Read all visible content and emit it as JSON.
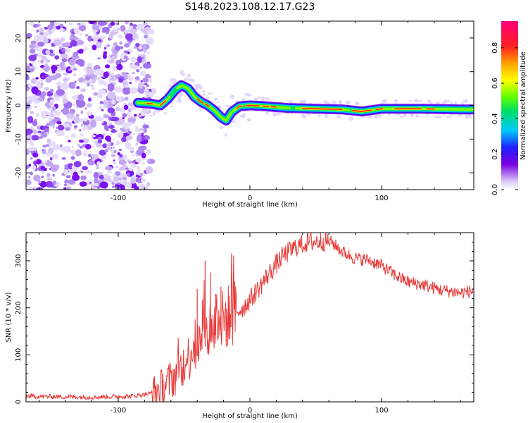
{
  "title": "S148.2023.108.12.17.G23",
  "chart_data": [
    {
      "type": "heatmap",
      "xlabel": "Height of straight line (km)",
      "ylabel": "Frequency (Hz)",
      "xlim": [
        -170,
        170
      ],
      "ylim": [
        -25,
        25
      ],
      "x_ticks": [
        -100,
        0,
        100
      ],
      "y_ticks": [
        -20,
        -10,
        0,
        10,
        20
      ],
      "colorbar": {
        "label": "Normalized spectral amplitude",
        "range": [
          0,
          0.95
        ],
        "ticks": [
          0.0,
          0.2,
          0.4,
          0.6,
          0.8
        ]
      },
      "noise_region_x": [
        -170,
        -80
      ],
      "ridge": [
        {
          "x": -85,
          "f": 0.8
        },
        {
          "x": -75,
          "f": 0.5
        },
        {
          "x": -68,
          "f": 0.0
        },
        {
          "x": -62,
          "f": 2.0
        },
        {
          "x": -57,
          "f": 4.5
        },
        {
          "x": -52,
          "f": 6.0
        },
        {
          "x": -47,
          "f": 5.0
        },
        {
          "x": -42,
          "f": 2.5
        },
        {
          "x": -37,
          "f": 1.0
        },
        {
          "x": -32,
          "f": 0.0
        },
        {
          "x": -27,
          "f": -1.5
        },
        {
          "x": -22,
          "f": -3.5
        },
        {
          "x": -18,
          "f": -4.5
        },
        {
          "x": -14,
          "f": -2.0
        },
        {
          "x": -8,
          "f": -0.3
        },
        {
          "x": 0,
          "f": 0.0
        },
        {
          "x": 10,
          "f": -0.2
        },
        {
          "x": 30,
          "f": -0.8
        },
        {
          "x": 50,
          "f": -1.0
        },
        {
          "x": 70,
          "f": -1.2
        },
        {
          "x": 85,
          "f": -1.8
        },
        {
          "x": 100,
          "f": -1.0
        },
        {
          "x": 130,
          "f": -1.0
        },
        {
          "x": 160,
          "f": -1.2
        },
        {
          "x": 170,
          "f": -1.2
        }
      ]
    },
    {
      "type": "line",
      "xlabel": "Height of straight line (km)",
      "ylabel": "SNR (10 * v/v)",
      "xlim": [
        -170,
        170
      ],
      "ylim": [
        0,
        360
      ],
      "x_ticks": [
        -100,
        0,
        100
      ],
      "y_ticks": [
        0,
        100,
        200,
        300
      ],
      "color": "#e83a3a",
      "trend": [
        {
          "x": -170,
          "y": 12
        },
        {
          "x": -120,
          "y": 10
        },
        {
          "x": -90,
          "y": 12
        },
        {
          "x": -75,
          "y": 18
        },
        {
          "x": -65,
          "y": 35
        },
        {
          "x": -55,
          "y": 60
        },
        {
          "x": -45,
          "y": 100
        },
        {
          "x": -35,
          "y": 135
        },
        {
          "x": -25,
          "y": 165
        },
        {
          "x": -15,
          "y": 185
        },
        {
          "x": -5,
          "y": 200
        },
        {
          "x": 5,
          "y": 235
        },
        {
          "x": 15,
          "y": 275
        },
        {
          "x": 25,
          "y": 310
        },
        {
          "x": 35,
          "y": 330
        },
        {
          "x": 45,
          "y": 340
        },
        {
          "x": 55,
          "y": 342
        },
        {
          "x": 62,
          "y": 340
        },
        {
          "x": 70,
          "y": 320
        },
        {
          "x": 80,
          "y": 305
        },
        {
          "x": 90,
          "y": 302
        },
        {
          "x": 100,
          "y": 290
        },
        {
          "x": 110,
          "y": 270
        },
        {
          "x": 120,
          "y": 255
        },
        {
          "x": 130,
          "y": 250
        },
        {
          "x": 145,
          "y": 238
        },
        {
          "x": 160,
          "y": 232
        },
        {
          "x": 170,
          "y": 236
        }
      ],
      "spikes": [
        {
          "x": -40,
          "y": 240
        },
        {
          "x": -34,
          "y": 300
        },
        {
          "x": -30,
          "y": 275
        },
        {
          "x": -26,
          "y": 230
        },
        {
          "x": -22,
          "y": 245
        }
      ]
    }
  ]
}
